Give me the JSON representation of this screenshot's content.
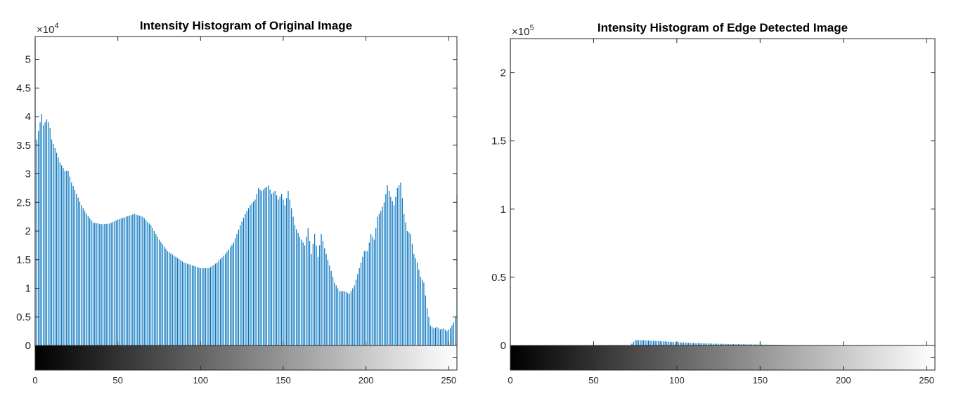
{
  "chart_data": [
    {
      "type": "bar",
      "title": "Intensity Histogram of Original Image",
      "xlabel": "",
      "ylabel": "",
      "xlim": [
        0,
        255
      ],
      "ylim": [
        0,
        54000
      ],
      "x_ticks": [
        0,
        50,
        100,
        150,
        200,
        250
      ],
      "y_ticks": [
        0,
        0.5,
        1,
        1.5,
        2,
        2.5,
        3,
        3.5,
        4,
        4.5,
        5
      ],
      "y_exponent_base": "×10",
      "y_exponent_power": "4",
      "y_multiplier": 10000,
      "bar_color": "#0072BD",
      "grid": false,
      "colorbar": "grayscale-0-255",
      "keypoints_x": [
        0,
        1,
        2,
        4,
        5,
        7,
        8,
        9,
        10,
        12,
        15,
        18,
        20,
        22,
        25,
        28,
        31,
        35,
        40,
        45,
        50,
        55,
        60,
        65,
        70,
        75,
        80,
        85,
        90,
        95,
        100,
        105,
        110,
        115,
        120,
        124,
        127,
        130,
        133,
        135,
        137,
        139,
        141,
        143,
        145,
        147,
        149,
        151,
        153,
        155,
        157,
        160,
        163,
        165,
        167,
        169,
        171,
        173,
        175,
        178,
        181,
        184,
        187,
        190,
        193,
        196,
        199,
        201,
        203,
        205,
        207,
        209,
        211,
        213,
        215,
        217,
        219,
        221,
        223,
        225,
        227,
        229,
        231,
        233,
        235,
        237,
        239,
        241,
        243,
        245,
        247,
        249,
        251,
        253,
        254,
        255
      ],
      "keypoints_y": [
        53500,
        36000,
        37500,
        40500,
        38500,
        39500,
        39000,
        38000,
        36000,
        34500,
        32000,
        30500,
        30500,
        28500,
        26500,
        24500,
        23000,
        21500,
        21200,
        21300,
        22000,
        22500,
        23000,
        22500,
        21000,
        18500,
        16500,
        15500,
        14500,
        14000,
        13500,
        13500,
        14500,
        16000,
        18000,
        21000,
        23000,
        24500,
        25500,
        27500,
        27000,
        27500,
        28000,
        26500,
        27000,
        25500,
        26500,
        24500,
        27000,
        24000,
        21000,
        19000,
        17500,
        20500,
        16000,
        19500,
        15500,
        19500,
        17000,
        14000,
        11000,
        9500,
        9500,
        9000,
        10500,
        13500,
        16500,
        16500,
        19500,
        18500,
        22500,
        23500,
        25000,
        28000,
        26000,
        24500,
        27500,
        28500,
        23000,
        20000,
        19500,
        16000,
        14500,
        12000,
        11000,
        6500,
        3500,
        3000,
        3200,
        2800,
        3000,
        2500,
        3000,
        4000,
        5000,
        26500
      ]
    },
    {
      "type": "bar",
      "title": "Intensity Histogram of Edge Detected Image",
      "xlabel": "",
      "ylabel": "",
      "xlim": [
        0,
        255
      ],
      "ylim": [
        0,
        225000
      ],
      "x_ticks": [
        0,
        50,
        100,
        150,
        200,
        250
      ],
      "y_ticks": [
        0,
        0.5,
        1,
        1.5,
        2
      ],
      "y_exponent_base": "×10",
      "y_exponent_power": "5",
      "y_multiplier": 100000,
      "bar_color": "#0072BD",
      "grid": false,
      "colorbar": "grayscale-0-255",
      "keypoints_x": [
        0,
        1,
        72,
        75,
        80,
        85,
        90,
        95,
        100,
        110,
        120,
        130,
        140,
        150,
        160,
        170,
        171,
        255
      ],
      "keypoints_y": [
        225000,
        0,
        0,
        4000,
        3800,
        3500,
        3200,
        2800,
        2400,
        1800,
        1400,
        1100,
        900,
        700,
        500,
        300,
        0,
        0
      ]
    }
  ]
}
